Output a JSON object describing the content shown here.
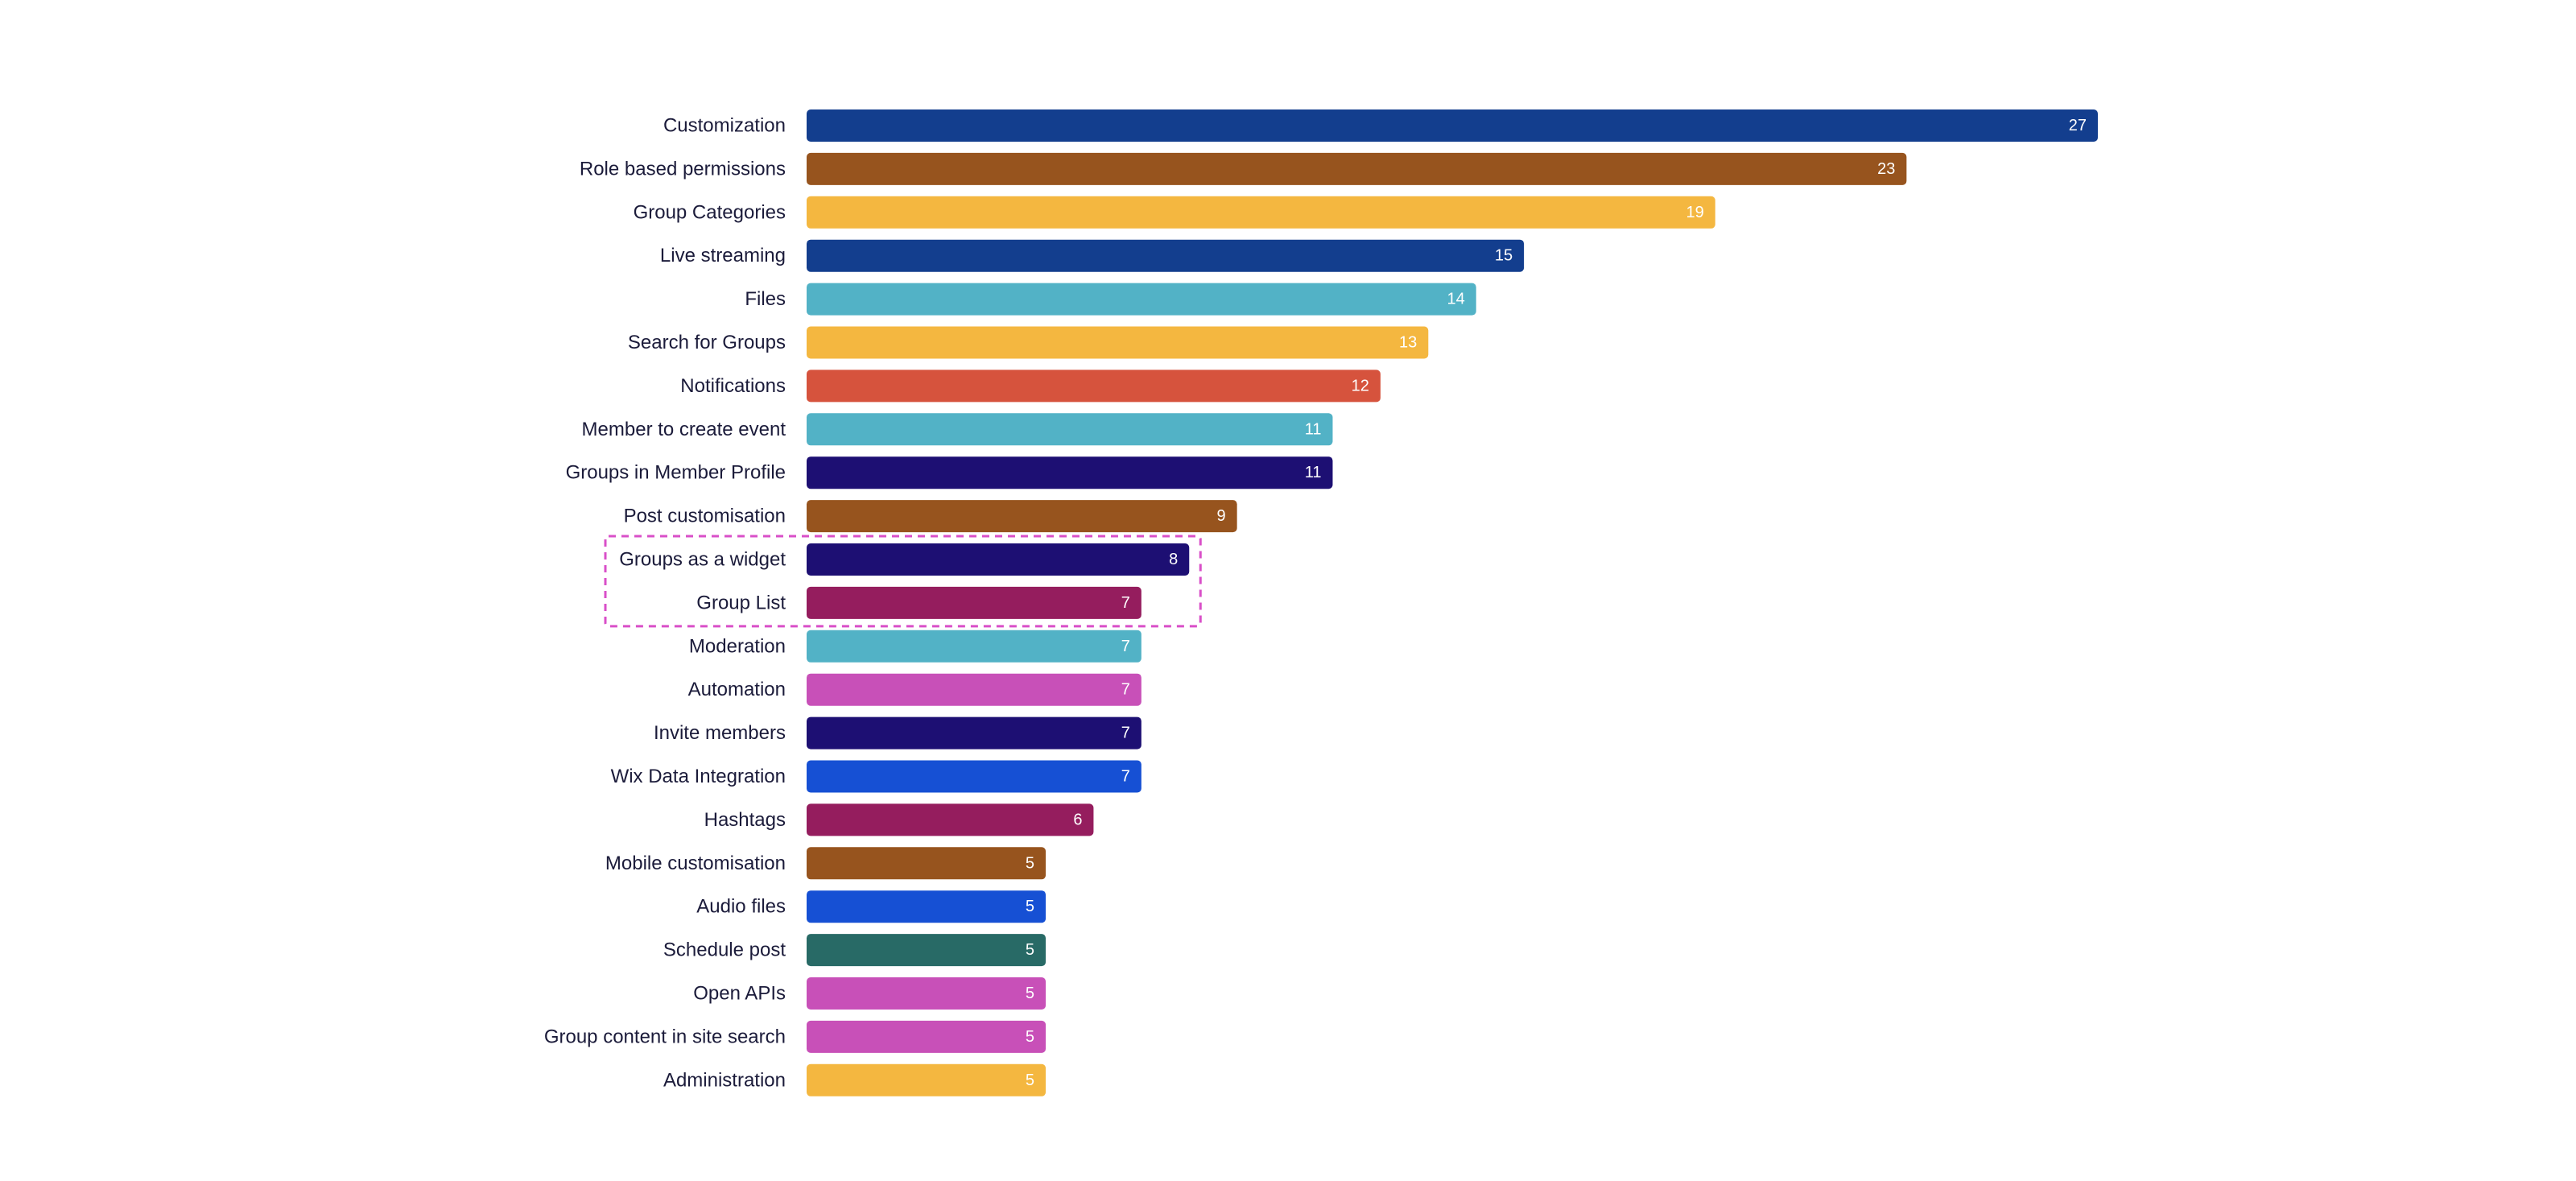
{
  "chart_data": {
    "type": "bar",
    "orientation": "horizontal",
    "categories": [
      "Customization",
      "Role based permissions",
      "Group Categories",
      "Live streaming",
      "Files",
      "Search for Groups",
      "Notifications",
      "Member to create event",
      "Groups in Member Profile",
      "Post customisation",
      "Groups as a widget",
      "Group List",
      "Moderation",
      "Automation",
      "Invite members",
      "Wix Data Integration",
      "Hashtags",
      "Mobile customisation",
      "Audio files",
      "Schedule post",
      "Open APIs",
      "Group content in site search",
      "Administration"
    ],
    "values": [
      27,
      23,
      19,
      15,
      14,
      13,
      12,
      11,
      11,
      9,
      8,
      7,
      7,
      7,
      7,
      7,
      6,
      5,
      5,
      5,
      5,
      5,
      5
    ],
    "colors": [
      "#133e8e",
      "#97541e",
      "#f4b740",
      "#133e8e",
      "#52b2c6",
      "#f4b740",
      "#d6533d",
      "#52b2c6",
      "#1d0f73",
      "#97541e",
      "#1d0f73",
      "#951d5e",
      "#52b2c6",
      "#c850b8",
      "#1d0f73",
      "#1650d4",
      "#951d5e",
      "#97541e",
      "#1650d4",
      "#286a66",
      "#c850b8",
      "#c850b8",
      "#f4b740"
    ],
    "highlighted_categories": [
      "Groups as a widget",
      "Group List"
    ],
    "highlight_color": "#d94fc8",
    "title": "",
    "xlabel": "",
    "ylabel": "",
    "xlim": [
      0,
      27
    ],
    "grid": false,
    "legend": "none",
    "data_labels": "inside-end"
  }
}
